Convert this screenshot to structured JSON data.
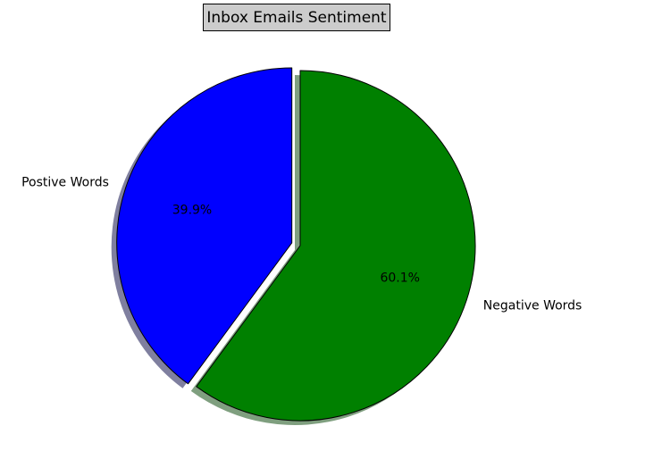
{
  "chart_data": {
    "type": "pie",
    "title": "Inbox Emails Sentiment",
    "labels": [
      "Postive Words",
      "Negative Words"
    ],
    "values": [
      39.9,
      60.1
    ],
    "percent_labels": [
      "39.9%",
      "60.1%"
    ],
    "colors": [
      "#0000ff",
      "#008000"
    ],
    "explode": [
      0.05,
      0
    ],
    "start_angle": 90,
    "counterclockwise": true,
    "shadow": true,
    "autopct": "%1.1f%%"
  }
}
